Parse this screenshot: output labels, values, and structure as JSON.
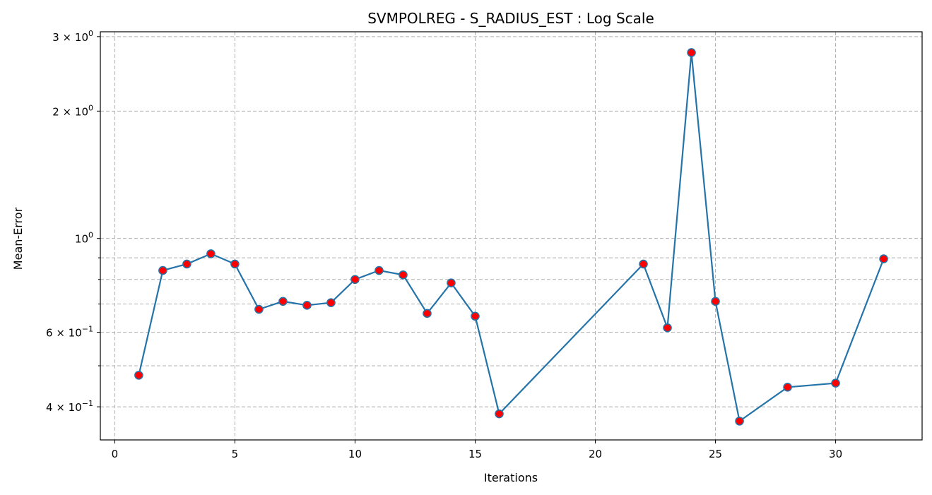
{
  "chart_data": {
    "type": "line",
    "title": "SVMPOLREG - S_RADIUS_EST : Log Scale",
    "xlabel": "Iterations",
    "ylabel": "Mean-Error",
    "x_scale": "linear",
    "y_scale": "log",
    "xlim": [
      -0.6,
      33.6
    ],
    "ylim": [
      0.334,
      3.08
    ],
    "x_ticks": [
      0,
      5,
      10,
      15,
      20,
      25,
      30
    ],
    "x_tick_labels": [
      "0",
      "5",
      "10",
      "15",
      "20",
      "25",
      "30"
    ],
    "y_major_ticks": [
      0.4,
      0.6,
      1,
      2,
      3
    ],
    "y_major_tick_labels": [
      {
        "base": "4 × 10",
        "exp": "−1"
      },
      {
        "base": "6 × 10",
        "exp": "−1"
      },
      {
        "base": "10",
        "exp": "0"
      },
      {
        "base": "2 × 10",
        "exp": "0"
      },
      {
        "base": "3 × 10",
        "exp": "0"
      }
    ],
    "y_minor_ticks": [
      0.5,
      0.7,
      0.8,
      0.9
    ],
    "grid": true,
    "series": [
      {
        "line_color": "#2574a9",
        "marker_face": "#ff0000",
        "marker_edge": "#2574a9",
        "x": [
          1,
          2,
          3,
          4,
          5,
          6,
          7,
          8,
          9,
          10,
          11,
          12,
          13,
          14,
          15,
          16,
          22,
          23,
          24,
          25,
          26,
          28,
          30,
          32
        ],
        "y": [
          0.475,
          0.84,
          0.87,
          0.92,
          0.87,
          0.68,
          0.71,
          0.695,
          0.705,
          0.8,
          0.84,
          0.82,
          0.665,
          0.785,
          0.655,
          0.385,
          0.87,
          0.615,
          2.75,
          0.71,
          0.37,
          0.445,
          0.455,
          0.895
        ]
      }
    ]
  }
}
